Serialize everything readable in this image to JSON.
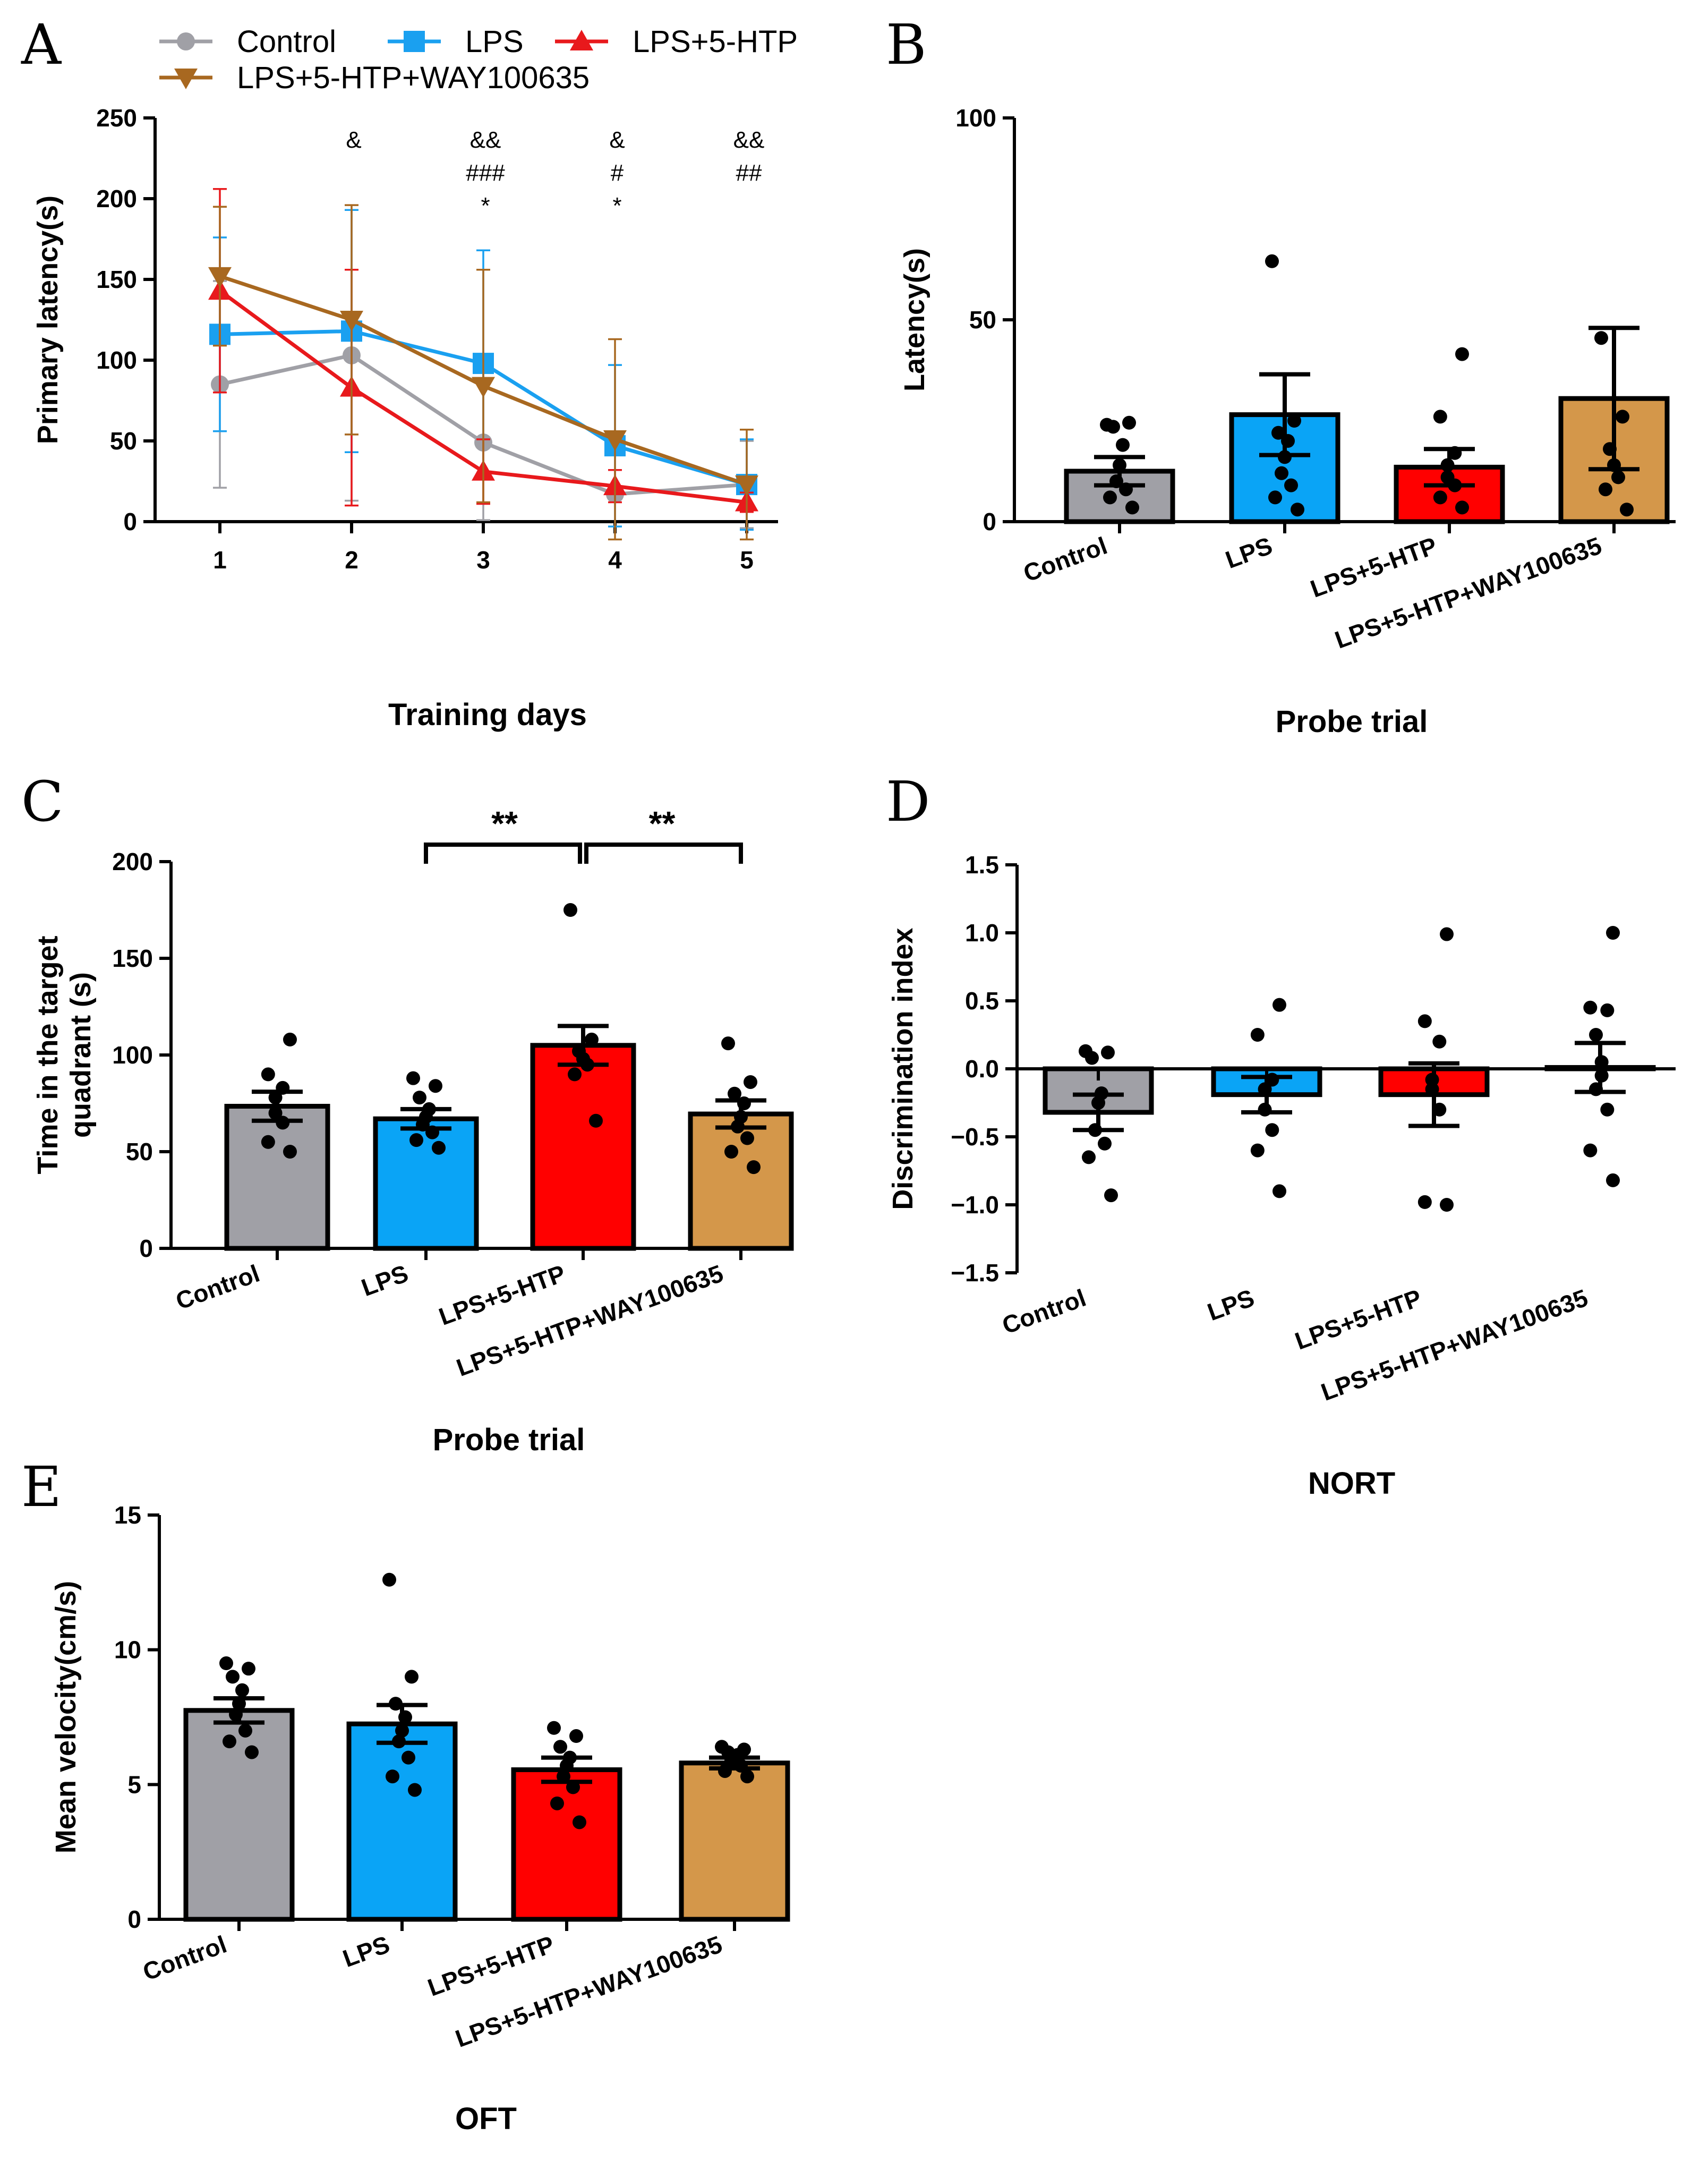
{
  "chart_data": [
    {
      "panel": "A",
      "type": "line",
      "title": "",
      "xlabel": "Training days",
      "ylabel": "Primary latency(s)",
      "x": [
        1,
        2,
        3,
        4,
        5
      ],
      "ylim": [
        0,
        250
      ],
      "yticks": [
        0,
        50,
        100,
        150,
        200,
        250
      ],
      "legend_position": "top",
      "series": [
        {
          "name": "Control",
          "color": "#a0a0a6",
          "marker": "circle",
          "values": [
            85,
            103,
            49,
            17,
            23
          ],
          "err": [
            64,
            90,
            48,
            0,
            27
          ]
        },
        {
          "name": "LPS",
          "color": "#1aa0f0",
          "marker": "square",
          "values": [
            116,
            118,
            98,
            47,
            23
          ],
          "err": [
            60,
            75,
            70,
            50,
            28
          ]
        },
        {
          "name": "LPS+5-HTP",
          "color": "#e8191c",
          "marker": "triangle-up",
          "values": [
            143,
            83,
            31,
            22,
            12
          ],
          "err": [
            63,
            73,
            20,
            10,
            6
          ]
        },
        {
          "name": "LPS+5-HTP+WAY100635",
          "color": "#a86820",
          "marker": "triangle-down",
          "values": [
            152,
            125,
            84,
            51,
            23
          ],
          "err": [
            43,
            71,
            72,
            62,
            34
          ]
        }
      ],
      "annotations": [
        {
          "x": 2,
          "lines": [
            "&"
          ]
        },
        {
          "x": 3,
          "lines": [
            "&&",
            "###",
            "*"
          ]
        },
        {
          "x": 4,
          "lines": [
            "&",
            "#",
            "*"
          ]
        },
        {
          "x": 5,
          "lines": [
            "&&",
            "##"
          ]
        }
      ]
    },
    {
      "panel": "B",
      "type": "bar",
      "xlabel": "Probe trial",
      "ylabel": "Latency(s)",
      "categories": [
        "Control",
        "LPS",
        "LPS+5-HTP",
        "LPS+5-HTP+WAY100635"
      ],
      "colors": [
        "#a0a0a6",
        "#0aa4f6",
        "#ff0000",
        "#d4974a"
      ],
      "values": [
        12.5,
        26.5,
        13.5,
        30.5
      ],
      "sem": [
        3.5,
        10,
        4.5,
        17.5
      ],
      "points": [
        [
          3.5,
          6,
          8,
          10,
          14,
          19,
          23.5,
          24.5,
          24
        ],
        [
          3,
          6,
          9,
          12,
          16,
          20,
          22,
          25,
          64.5
        ],
        [
          3.5,
          6,
          9,
          11,
          14,
          17,
          26,
          41.5
        ],
        [
          3,
          8,
          11,
          14,
          18,
          26,
          45.5
        ]
      ],
      "ylim": [
        0,
        100
      ],
      "yticks": [
        0,
        50,
        100
      ]
    },
    {
      "panel": "C",
      "type": "bar",
      "xlabel": "Probe trial",
      "ylabel": [
        "Time in the target",
        "quadrant (s)"
      ],
      "categories": [
        "Control",
        "LPS",
        "LPS+5-HTP",
        "LPS+5-HTP+WAY100635"
      ],
      "colors": [
        "#a0a0a6",
        "#0aa4f6",
        "#ff0000",
        "#d4974a"
      ],
      "values": [
        73.5,
        67,
        105,
        69.5
      ],
      "sem": [
        7.5,
        5,
        10,
        7
      ],
      "points": [
        [
          50,
          55,
          65,
          70,
          78,
          83,
          90,
          108
        ],
        [
          52,
          56,
          60,
          64,
          68,
          72,
          78,
          84,
          88
        ],
        [
          66,
          90,
          95,
          98,
          102,
          108,
          175
        ],
        [
          42,
          50,
          57,
          63,
          68,
          75,
          80,
          86,
          106
        ]
      ],
      "ylim": [
        0,
        200
      ],
      "yticks": [
        0,
        50,
        100,
        150,
        200
      ],
      "significance": [
        {
          "from": 1,
          "to": 2,
          "label": "**"
        },
        {
          "from": 2,
          "to": 3,
          "label": "**"
        }
      ]
    },
    {
      "panel": "D",
      "type": "bar",
      "xlabel": "NORT",
      "ylabel": "Discrimination index",
      "categories": [
        "Control",
        "LPS",
        "LPS+5-HTP",
        "LPS+5-HTP+WAY100635"
      ],
      "colors": [
        "#a0a0a6",
        "#0aa4f6",
        "#ff0000",
        "#d4974a"
      ],
      "values": [
        -0.32,
        -0.19,
        -0.19,
        0.01
      ],
      "sem": [
        0.13,
        0.13,
        0.23,
        0.18
      ],
      "points": [
        [
          -0.93,
          -0.65,
          -0.55,
          -0.45,
          -0.25,
          -0.18,
          0.08,
          0.12,
          0.13
        ],
        [
          -0.9,
          -0.6,
          -0.45,
          -0.3,
          -0.15,
          -0.08,
          0.25,
          0.47
        ],
        [
          -1.0,
          -0.98,
          -0.3,
          -0.15,
          -0.08,
          0.2,
          0.35,
          0.99
        ],
        [
          -0.82,
          -0.6,
          -0.3,
          -0.15,
          -0.05,
          0.05,
          0.25,
          0.43,
          0.45,
          1.0
        ]
      ],
      "ylim": [
        -1.5,
        1.5
      ],
      "yticks": [
        -1.5,
        -1.0,
        -0.5,
        0.0,
        0.5,
        1.0,
        1.5
      ],
      "ytick_labels": [
        "−1.5",
        "−1.0",
        "−0.5",
        "0.0",
        "0.5",
        "1.0",
        "1.5"
      ]
    },
    {
      "panel": "E",
      "type": "bar",
      "xlabel": "OFT",
      "ylabel": "Mean velocity(cm/s)",
      "categories": [
        "Control",
        "LPS",
        "LPS+5-HTP",
        "LPS+5-HTP+WAY100635"
      ],
      "colors": [
        "#a0a0a6",
        "#0aa4f6",
        "#ff0000",
        "#d4974a"
      ],
      "values": [
        7.75,
        7.25,
        5.55,
        5.8
      ],
      "sem": [
        0.45,
        0.7,
        0.45,
        0.2
      ],
      "points": [
        [
          6.2,
          6.6,
          7.0,
          7.6,
          8.0,
          8.5,
          9.0,
          9.3,
          9.5
        ],
        [
          4.8,
          5.3,
          6.0,
          6.6,
          7.0,
          7.5,
          8.0,
          9.0,
          12.6
        ],
        [
          3.6,
          4.3,
          4.9,
          5.3,
          5.7,
          6.0,
          6.4,
          6.8,
          7.1
        ],
        [
          5.3,
          5.5,
          5.7,
          5.9,
          6.0,
          6.1,
          6.2,
          6.3,
          6.4
        ]
      ],
      "ylim": [
        0,
        15
      ],
      "yticks": [
        0,
        5,
        10,
        15
      ]
    }
  ]
}
